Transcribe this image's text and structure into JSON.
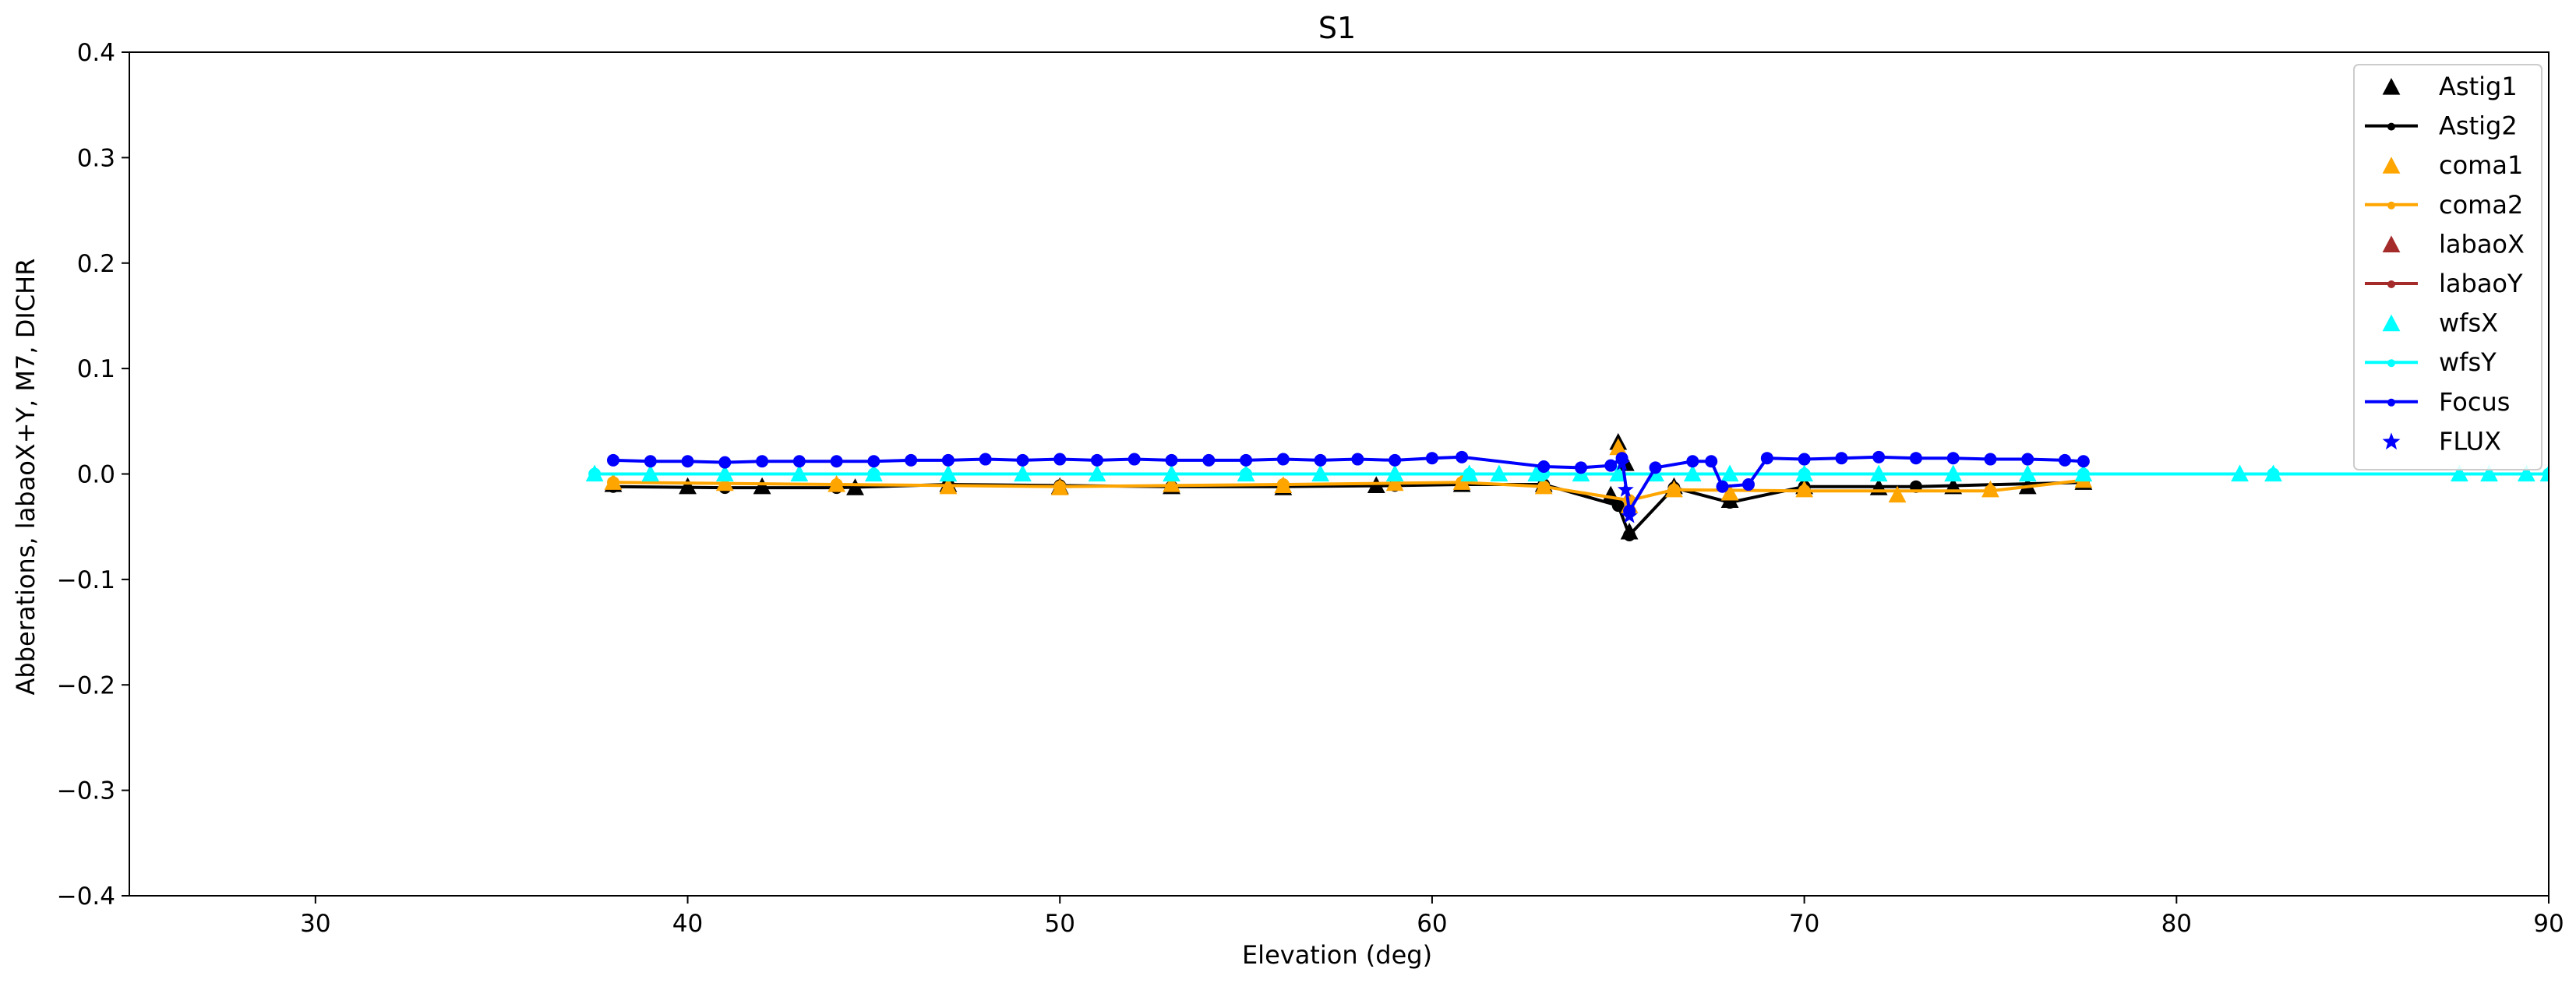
{
  "chart_data": {
    "type": "scatter",
    "title": "S1",
    "xlabel": "Elevation (deg)",
    "ylabel": "Abberations, labaoX+Y, M7, DICHR",
    "xlim": [
      25,
      90
    ],
    "ylim": [
      -0.4,
      0.4
    ],
    "x_ticks": [
      30,
      40,
      50,
      60,
      70,
      80,
      90
    ],
    "y_ticks": [
      -0.4,
      -0.3,
      -0.2,
      -0.1,
      0.0,
      0.1,
      0.2,
      0.3,
      0.4
    ],
    "x_tick_labels": [
      "30",
      "40",
      "50",
      "60",
      "70",
      "80",
      "90"
    ],
    "y_tick_labels": [
      "−0.4",
      "−0.3",
      "−0.2",
      "−0.1",
      "0.0",
      "0.1",
      "0.2",
      "0.3",
      "0.4"
    ],
    "grid": false,
    "legend_position": "top-right",
    "legend": [
      {
        "name": "Astig1",
        "color": "#000000",
        "marker": "triangle",
        "line": false
      },
      {
        "name": "Astig2",
        "color": "#000000",
        "marker": "dot",
        "line": true
      },
      {
        "name": "coma1",
        "color": "#ffa500",
        "marker": "triangle",
        "line": false
      },
      {
        "name": "coma2",
        "color": "#ffa500",
        "marker": "dot",
        "line": true
      },
      {
        "name": "labaoX",
        "color": "#a52a2a",
        "marker": "triangle",
        "line": false
      },
      {
        "name": "labaoY",
        "color": "#a52a2a",
        "marker": "dot",
        "line": true
      },
      {
        "name": "wfsX",
        "color": "#00ffff",
        "marker": "triangle",
        "line": false
      },
      {
        "name": "wfsY",
        "color": "#00ffff",
        "marker": "dot",
        "line": true
      },
      {
        "name": "Focus",
        "color": "#0000ff",
        "marker": "dot",
        "line": true
      },
      {
        "name": "FLUX",
        "color": "#0000ff",
        "marker": "star",
        "line": false
      }
    ],
    "series": [
      {
        "name": "Astig1",
        "color": "#000000",
        "marker": "triangle",
        "x": [
          38.0,
          40.0,
          42.0,
          44.5,
          47.0,
          50.0,
          53.0,
          56.0,
          58.5,
          60.8,
          63.0,
          64.8,
          65.0,
          65.2,
          65.3,
          66.5,
          68.0,
          70.0,
          72.0,
          74.0,
          76.0,
          77.5
        ],
        "y": [
          -0.01,
          -0.012,
          -0.012,
          -0.013,
          -0.01,
          -0.012,
          -0.012,
          -0.013,
          -0.011,
          -0.01,
          -0.01,
          -0.02,
          0.03,
          0.01,
          -0.055,
          -0.012,
          -0.025,
          -0.012,
          -0.013,
          -0.012,
          -0.012,
          -0.008
        ]
      },
      {
        "name": "Astig2",
        "color": "#000000",
        "marker": "dot",
        "x": [
          38.0,
          41.0,
          44.0,
          47.0,
          50.0,
          53.0,
          56.0,
          59.0,
          60.8,
          63.0,
          65.0,
          65.3,
          66.5,
          68.0,
          70.0,
          73.0,
          77.5
        ],
        "y": [
          -0.012,
          -0.013,
          -0.013,
          -0.01,
          -0.011,
          -0.012,
          -0.012,
          -0.011,
          -0.01,
          -0.01,
          -0.03,
          -0.058,
          -0.013,
          -0.027,
          -0.012,
          -0.012,
          -0.008
        ]
      },
      {
        "name": "coma1",
        "color": "#ffa500",
        "marker": "triangle",
        "x": [
          38.0,
          41.0,
          44.0,
          47.0,
          50.0,
          53.0,
          56.0,
          59.0,
          60.8,
          63.0,
          65.0,
          65.3,
          66.5,
          68.0,
          70.0,
          72.5,
          75.0,
          77.5
        ],
        "y": [
          -0.008,
          -0.009,
          -0.01,
          -0.012,
          -0.013,
          -0.01,
          -0.011,
          -0.009,
          -0.008,
          -0.012,
          0.025,
          -0.03,
          -0.015,
          -0.018,
          -0.015,
          -0.02,
          -0.015,
          -0.006
        ]
      },
      {
        "name": "coma2",
        "color": "#ffa500",
        "marker": "dot",
        "x": [
          38.0,
          44.0,
          50.0,
          56.0,
          60.8,
          63.0,
          65.3,
          66.5,
          70.0,
          75.0,
          77.5
        ],
        "y": [
          -0.008,
          -0.01,
          -0.012,
          -0.01,
          -0.008,
          -0.012,
          -0.025,
          -0.015,
          -0.016,
          -0.016,
          -0.006
        ]
      },
      {
        "name": "wfsX",
        "color": "#00ffff",
        "marker": "triangle",
        "x": [
          37.5,
          39.0,
          41.0,
          43.0,
          45.0,
          47.0,
          49.0,
          51.0,
          53.0,
          55.0,
          57.0,
          59.0,
          61.0,
          61.8,
          62.8,
          64.0,
          65.0,
          66.0,
          67.0,
          68.0,
          70.0,
          72.0,
          74.0,
          76.0,
          77.5,
          81.7,
          82.6,
          87.6,
          88.4,
          89.4,
          90.0
        ],
        "y": [
          0.0,
          0.0,
          0.0,
          0.0,
          0.0,
          0.0,
          0.0,
          0.0,
          0.0,
          0.0,
          0.0,
          0.0,
          0.0,
          0.0,
          0.0,
          0.0,
          0.0,
          0.0,
          0.0,
          0.0,
          0.0,
          0.0,
          0.0,
          0.0,
          0.0,
          0.0,
          0.0,
          0.0,
          0.0,
          0.0,
          0.0
        ]
      },
      {
        "name": "wfsY",
        "color": "#00ffff",
        "marker": "dot",
        "x": [
          37.5,
          45.0,
          55.0,
          61.0,
          63.0,
          70.0,
          77.5,
          82.6,
          90.0
        ],
        "y": [
          0.0,
          0.0,
          0.0,
          0.0,
          0.0,
          0.0,
          0.0,
          0.0,
          0.0
        ]
      },
      {
        "name": "Focus",
        "color": "#0000ff",
        "marker": "dot",
        "x": [
          38.0,
          39.0,
          40.0,
          41.0,
          42.0,
          43.0,
          44.0,
          45.0,
          46.0,
          47.0,
          48.0,
          49.0,
          50.0,
          51.0,
          52.0,
          53.0,
          54.0,
          55.0,
          56.0,
          57.0,
          58.0,
          59.0,
          60.0,
          60.8,
          63.0,
          64.0,
          64.8,
          65.1,
          65.3,
          66.0,
          67.0,
          67.5,
          67.8,
          68.5,
          69.0,
          70.0,
          71.0,
          72.0,
          73.0,
          74.0,
          75.0,
          76.0,
          77.0,
          77.5
        ],
        "y": [
          0.013,
          0.012,
          0.012,
          0.011,
          0.012,
          0.012,
          0.012,
          0.012,
          0.013,
          0.013,
          0.014,
          0.013,
          0.014,
          0.013,
          0.014,
          0.013,
          0.013,
          0.013,
          0.014,
          0.013,
          0.014,
          0.013,
          0.015,
          0.016,
          0.007,
          0.006,
          0.008,
          0.015,
          -0.035,
          0.006,
          0.012,
          0.012,
          -0.012,
          -0.01,
          0.015,
          0.014,
          0.015,
          0.016,
          0.015,
          0.015,
          0.014,
          0.014,
          0.013,
          0.012
        ]
      },
      {
        "name": "FLUX",
        "color": "#0000ff",
        "marker": "star",
        "x": [
          65.1,
          65.2,
          65.3
        ],
        "y": [
          0.01,
          -0.015,
          -0.04
        ]
      }
    ]
  }
}
